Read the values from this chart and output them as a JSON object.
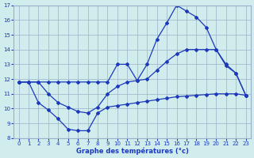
{
  "hours": [
    0,
    1,
    2,
    3,
    4,
    5,
    6,
    7,
    8,
    9,
    10,
    11,
    12,
    13,
    14,
    15,
    16,
    17,
    18,
    19,
    20,
    21,
    22,
    23
  ],
  "max_temps": [
    11.8,
    11.8,
    11.8,
    11.8,
    11.8,
    11.8,
    11.8,
    11.8,
    11.8,
    11.8,
    13.0,
    13.0,
    11.9,
    13.0,
    14.7,
    15.8,
    17.0,
    16.6,
    16.2,
    15.5,
    14.0,
    12.9,
    12.4,
    10.9
  ],
  "min_temps": [
    11.8,
    11.8,
    10.4,
    9.9,
    9.3,
    8.6,
    8.5,
    8.5,
    9.7,
    10.1,
    10.2,
    10.3,
    10.4,
    10.5,
    10.6,
    10.7,
    10.8,
    10.85,
    10.9,
    10.95,
    11.0,
    11.0,
    11.0,
    10.9
  ],
  "avg_temps": [
    11.8,
    11.8,
    11.8,
    11.0,
    10.4,
    10.1,
    9.8,
    9.7,
    10.1,
    11.0,
    11.5,
    11.8,
    11.9,
    12.0,
    12.6,
    13.2,
    13.7,
    14.0,
    14.0,
    14.0,
    14.0,
    13.0,
    12.4,
    10.9
  ],
  "line_color": "#1c39bb",
  "bg_color": "#d0ecec",
  "grid_color": "#9ab0c8",
  "xlabel": "Graphe des températures (°c)",
  "ylim": [
    8,
    17
  ],
  "xlim": [
    0,
    23
  ],
  "yticks": [
    8,
    9,
    10,
    11,
    12,
    13,
    14,
    15,
    16,
    17
  ],
  "xticks": [
    0,
    1,
    2,
    3,
    4,
    5,
    6,
    7,
    8,
    9,
    10,
    11,
    12,
    13,
    14,
    15,
    16,
    17,
    18,
    19,
    20,
    21,
    22,
    23
  ]
}
